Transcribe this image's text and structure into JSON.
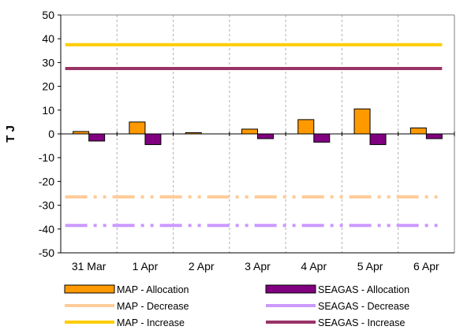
{
  "chart_data": {
    "type": "bar",
    "ylabel": "T J",
    "xlabel": "",
    "title": "",
    "ylim": [
      -50,
      50
    ],
    "y_tick_step": 10,
    "y_ticks": [
      "50",
      "40",
      "30",
      "20",
      "10",
      "0",
      "-10",
      "-20",
      "-30",
      "-40",
      "-50"
    ],
    "grid": "vertical-dashed",
    "legend_position": "bottom",
    "categories": [
      "31 Mar",
      "1 Apr",
      "2 Apr",
      "3 Apr",
      "4 Apr",
      "5 Apr",
      "6 Apr"
    ],
    "series": [
      {
        "name": "MAP - Allocation",
        "kind": "bar",
        "color": "#FF9900",
        "values": [
          1,
          5,
          0.5,
          2,
          6,
          10.5,
          2.5
        ]
      },
      {
        "name": "SEAGAS - Allocation",
        "kind": "bar",
        "color": "#800080",
        "values": [
          -3,
          -4.5,
          0,
          -2,
          -3.5,
          -4.5,
          -2
        ]
      },
      {
        "name": "MAP - Decrease",
        "kind": "line",
        "style": "dash-dot",
        "color": "#FFCC99",
        "values": [
          -26.5,
          -26.5,
          -26.5,
          -26.5,
          -26.5,
          -26.5,
          -26.5
        ]
      },
      {
        "name": "SEAGAS - Decrease",
        "kind": "line",
        "style": "dash-dot",
        "color": "#CC99FF",
        "values": [
          -38.5,
          -38.5,
          -38.5,
          -38.5,
          -38.5,
          -38.5,
          -38.5
        ]
      },
      {
        "name": "MAP - Increase",
        "kind": "line",
        "style": "solid",
        "color": "#FFCC00",
        "values": [
          37.5,
          37.5,
          37.5,
          37.5,
          37.5,
          37.5,
          37.5
        ]
      },
      {
        "name": "SEAGAS - Increase",
        "kind": "line",
        "style": "solid",
        "color": "#993366",
        "values": [
          27.5,
          27.5,
          27.5,
          27.5,
          27.5,
          27.5,
          27.5
        ]
      }
    ]
  }
}
